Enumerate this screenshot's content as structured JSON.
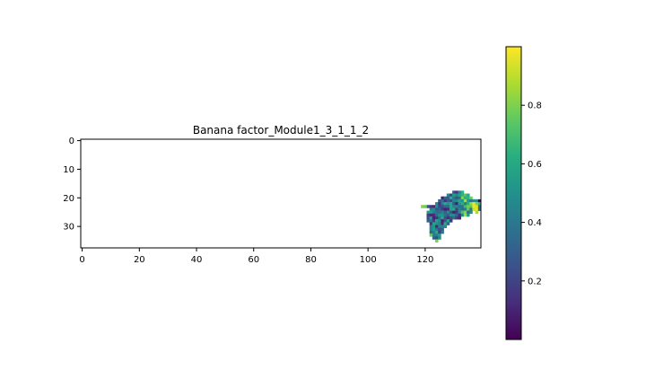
{
  "chart_data": {
    "type": "heatmap",
    "title": "Banana factor_Module1_3_1_1_2",
    "xlabel": "",
    "ylabel": "",
    "n_cols": 140,
    "n_rows": 38,
    "xlim": [
      -0.5,
      139.5
    ],
    "ylim": [
      37.5,
      -0.5
    ],
    "x_ticks": [
      0,
      20,
      40,
      60,
      80,
      100,
      120
    ],
    "y_ticks": [
      0,
      10,
      20,
      30
    ],
    "colormap": "viridis",
    "colorbar": {
      "range": [
        0.0,
        1.0
      ],
      "ticks": [
        0.2,
        0.4,
        0.6,
        0.8
      ]
    },
    "grid": false,
    "blob_row_spans": [
      {
        "row": 18,
        "start": 130,
        "end": 133
      },
      {
        "row": 19,
        "start": 128,
        "end": 135
      },
      {
        "row": 20,
        "start": 126,
        "end": 136
      },
      {
        "row": 21,
        "start": 125,
        "end": 139
      },
      {
        "row": 22,
        "start": 124,
        "end": 139
      },
      {
        "row": 23,
        "start": 121,
        "end": 139
      },
      {
        "row": 24,
        "start": 122,
        "end": 139
      },
      {
        "row": 25,
        "start": 121,
        "end": 136
      },
      {
        "row": 26,
        "start": 121,
        "end": 135
      },
      {
        "row": 27,
        "start": 121,
        "end": 132
      },
      {
        "row": 28,
        "start": 121,
        "end": 129
      },
      {
        "row": 29,
        "start": 122,
        "end": 128
      },
      {
        "row": 30,
        "start": 122,
        "end": 127
      },
      {
        "row": 31,
        "start": 122,
        "end": 126
      },
      {
        "row": 32,
        "start": 122,
        "end": 126
      },
      {
        "row": 33,
        "start": 123,
        "end": 125
      },
      {
        "row": 34,
        "start": 123,
        "end": 125
      },
      {
        "row": 35,
        "start": 124,
        "end": 124
      }
    ],
    "bright_cells": [
      {
        "row": 23,
        "col": 119,
        "value": 0.82
      },
      {
        "row": 23,
        "col": 120,
        "value": 0.78
      },
      {
        "row": 22,
        "col": 137,
        "value": 0.97
      },
      {
        "row": 23,
        "col": 137,
        "value": 0.98
      },
      {
        "row": 23,
        "col": 138,
        "value": 0.95
      },
      {
        "row": 24,
        "col": 137,
        "value": 0.92
      },
      {
        "row": 24,
        "col": 138,
        "value": 0.97
      },
      {
        "row": 25,
        "col": 138,
        "value": 0.88
      },
      {
        "row": 21,
        "col": 139,
        "value": 0.02
      },
      {
        "row": 22,
        "col": 136,
        "value": 0.85
      },
      {
        "row": 35,
        "col": 124,
        "value": 0.8
      },
      {
        "row": 33,
        "col": 122,
        "value": 0.75
      }
    ]
  }
}
